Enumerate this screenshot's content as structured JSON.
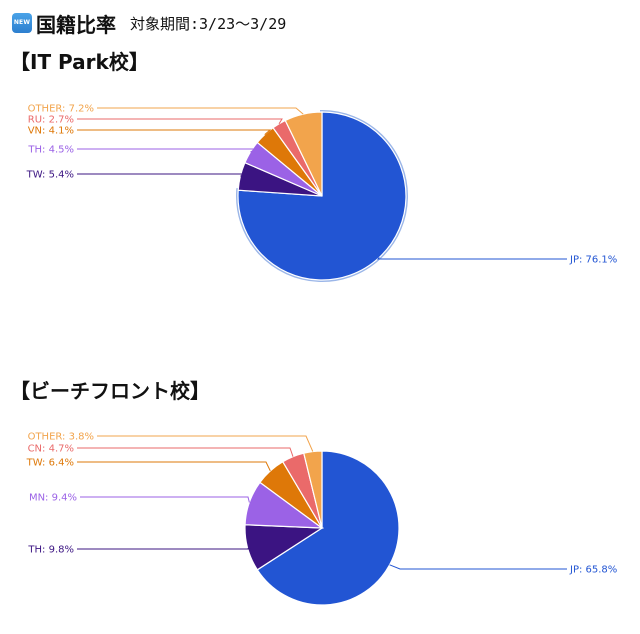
{
  "header": {
    "badge": "NEW",
    "title": "国籍比率",
    "period": "対象期間:3/23〜3/29"
  },
  "chart_data": [
    {
      "type": "pie",
      "title": "【IT Park校】",
      "slices": [
        {
          "label": "JP: 76.1%",
          "value": 76.1,
          "color": "#2255d3"
        },
        {
          "label": "TW: 5.4%",
          "value": 5.4,
          "color": "#3b1482"
        },
        {
          "label": "TH: 4.5%",
          "value": 4.5,
          "color": "#9b62e6"
        },
        {
          "label": "VN: 4.1%",
          "value": 4.1,
          "color": "#de7808"
        },
        {
          "label": "RU: 2.7%",
          "value": 2.7,
          "color": "#ea6a6a"
        },
        {
          "label": "OTHER: 7.2%",
          "value": 7.2,
          "color": "#f2a44c"
        }
      ]
    },
    {
      "type": "pie",
      "title": "【ビーチフロント校】",
      "slices": [
        {
          "label": "JP: 65.8%",
          "value": 65.8,
          "color": "#2255d3"
        },
        {
          "label": "TH: 9.8%",
          "value": 9.8,
          "color": "#3b1482"
        },
        {
          "label": "MN: 9.4%",
          "value": 9.4,
          "color": "#9b62e6"
        },
        {
          "label": "TW: 6.4%",
          "value": 6.4,
          "color": "#de7808"
        },
        {
          "label": "CN: 4.7%",
          "value": 4.7,
          "color": "#ea6a6a"
        },
        {
          "label": "OTHER: 3.8%",
          "value": 3.8,
          "color": "#f2a44c"
        }
      ]
    }
  ]
}
